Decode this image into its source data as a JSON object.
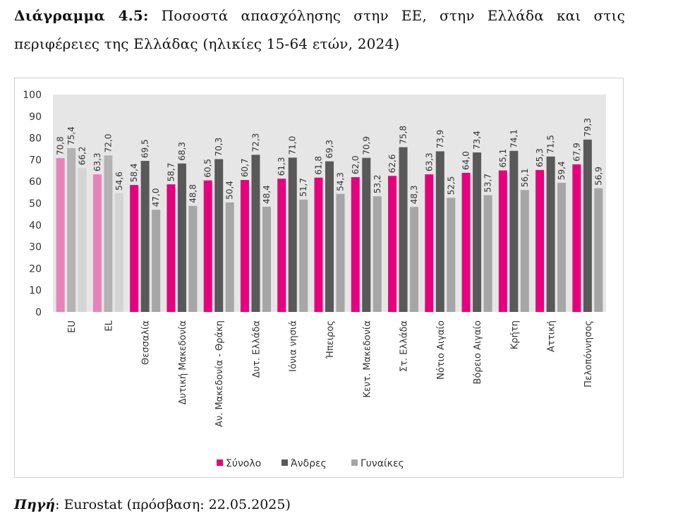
{
  "caption": {
    "label": "Διάγραμμα 4.5:",
    "text": "Ποσοστά απασχόλησης στην ΕΕ, στην Ελλάδα και στις περιφέρειες της Ελλάδας (ηλικίες 15-64 ετών, 2024)"
  },
  "source": {
    "label": "Πηγή",
    "text": ": Eurostat (πρόσβαση: 22.05.2025)"
  },
  "colors": {
    "total": "#e6007e",
    "men": "#595959",
    "women": "#a6a6a6",
    "total_eu_el": "#e883b8",
    "men_eu_el": "#b3b3b3",
    "women_eu_el": "#d4d4d4",
    "plot_bg": "#e6e6e6"
  },
  "chart_data": {
    "type": "bar",
    "categories": [
      "EU",
      "EL",
      "Θεσσαλία",
      "Δυτική Μακεδονία",
      "Αν. Μακεδονία - Θράκη",
      "Δυτ. Ελλάδα",
      "Ιόνια νησιά",
      "Ήπειρος",
      "Κεντ. Μακεδονία",
      "Στ. Ελλάδα",
      "Νότιο Αιγαίο",
      "Βόρειο Αιγαίο",
      "Κρήτη",
      "Αττική",
      "Πελοπόννησος"
    ],
    "series": [
      {
        "name": "Σύνολο",
        "values": [
          70.8,
          63.3,
          58.4,
          58.7,
          60.5,
          60.7,
          61.3,
          61.8,
          62.0,
          62.6,
          63.3,
          64.0,
          65.1,
          65.3,
          67.9
        ]
      },
      {
        "name": "Άνδρες",
        "values": [
          75.4,
          72.0,
          69.5,
          68.3,
          70.3,
          72.3,
          71.0,
          69.3,
          70.9,
          75.8,
          73.9,
          73.4,
          74.1,
          71.5,
          79.3
        ]
      },
      {
        "name": "Γυναίκες",
        "values": [
          66.2,
          54.6,
          47.0,
          48.8,
          50.4,
          48.4,
          51.7,
          54.3,
          53.2,
          48.3,
          52.5,
          53.7,
          56.1,
          59.4,
          56.9
        ]
      }
    ],
    "value_labels": [
      [
        "70,8",
        "63,3",
        "58,4",
        "58,7",
        "60,5",
        "60,7",
        "61,3",
        "61,8",
        "62,0",
        "62,6",
        "63,3",
        "64,0",
        "65,1",
        "65,3",
        "67,9"
      ],
      [
        "75,4",
        "72,0",
        "69,5",
        "68,3",
        "70,3",
        "72,3",
        "71,0",
        "69,3",
        "70,9",
        "75,8",
        "73,9",
        "73,4",
        "74,1",
        "71,5",
        "79,3"
      ],
      [
        "66,2",
        "54,6",
        "47,0",
        "48,8",
        "50,4",
        "48,4",
        "51,7",
        "54,3",
        "53,2",
        "48,3",
        "52,5",
        "53,7",
        "56,1",
        "59,4",
        "56,9"
      ]
    ],
    "highlighted_categories": [
      "EU",
      "EL"
    ],
    "ylim": [
      0,
      100
    ],
    "yticks": [
      0,
      10,
      20,
      30,
      40,
      50,
      60,
      70,
      80,
      90,
      100
    ],
    "grid": false,
    "legend_position": "bottom"
  }
}
